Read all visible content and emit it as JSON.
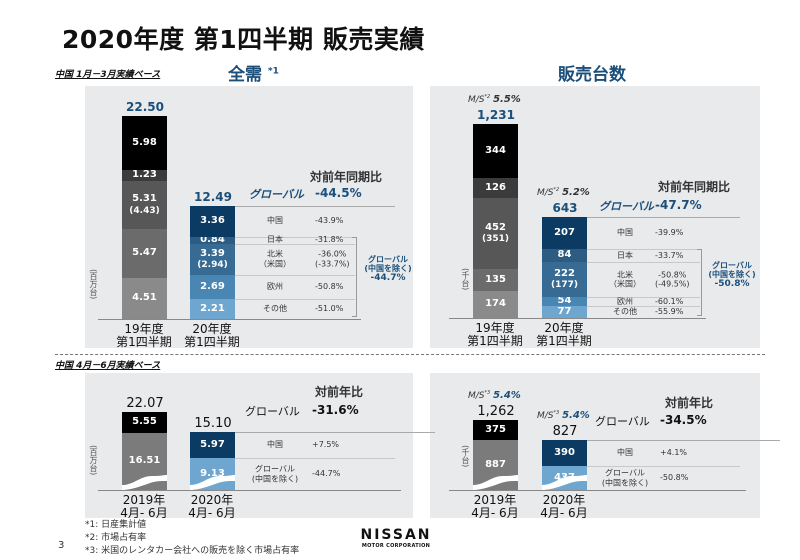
{
  "title": "2020年度 第1四半期 販売実績",
  "page_number": "3",
  "captions": {
    "q1": "中国 1月－3月実績ベース",
    "q2": "中国 4月－6月実績ベース"
  },
  "section_titles": {
    "total_demand": "全需",
    "total_demand_note": "*1",
    "sales_volume": "販売台数"
  },
  "footnotes": [
    "*1: 日産集計値",
    "*2: 市場占有率",
    "*3: 米国のレンタカー会社への販売を除く市場占有率"
  ],
  "logo": {
    "name": "NISSAN",
    "sub": "MOTOR CORPORATION"
  },
  "chart_data": [
    {
      "type": "stacked-bar",
      "title": "全需 *1",
      "unit": "(百万台)",
      "yoy_header": "対前年同期比",
      "global_label": "グローバル",
      "global_yoy": "-44.5%",
      "group": {
        "label": "グローバル",
        "sub": "(中国を除く)",
        "yoy": "-44.7%"
      },
      "bars": [
        {
          "x1": "19年度",
          "x2": "第1四半期",
          "total": "22.50",
          "segments": [
            {
              "value": "5.98",
              "color": "#000000"
            },
            {
              "value": "1.23",
              "color": "#3b3b3b"
            },
            {
              "value": "5.31",
              "sub": "(4.43)",
              "color": "#575757"
            },
            {
              "value": "5.47",
              "color": "#6b6b6b"
            },
            {
              "value": "4.51",
              "color": "#8a8a8a"
            }
          ]
        },
        {
          "x1": "20年度",
          "x2": "第1四半期",
          "total": "12.49",
          "segments": [
            {
              "value": "3.36",
              "color": "#0b3a62",
              "label": "中国",
              "yoy": "-43.9%"
            },
            {
              "value": "0.84",
              "color": "#2c5c82",
              "label": "日本",
              "yoy": "-31.8%"
            },
            {
              "value": "3.39",
              "sub": "(2.94)",
              "color": "#386b93",
              "label": "北米",
              "label_sub": "（米国）",
              "yoy": "-36.0%",
              "yoy_sub": "(-33.7%)"
            },
            {
              "value": "2.69",
              "color": "#4a86b3",
              "label": "欧州",
              "yoy": "-50.8%"
            },
            {
              "value": "2.21",
              "color": "#6ea6cf",
              "label": "その他",
              "yoy": "-51.0%"
            }
          ]
        }
      ]
    },
    {
      "type": "stacked-bar",
      "title": "販売台数",
      "unit": "(千台)",
      "yoy_header": "対前年同期比",
      "global_label": "グローバル",
      "global_yoy": "-47.7%",
      "group": {
        "label": "グローバル",
        "sub": "(中国を除く)",
        "yoy": "-50.8%"
      },
      "bars": [
        {
          "x1": "19年度",
          "x2": "第1四半期",
          "total": "1,231",
          "ms_label": "M/S",
          "ms_note": "*2",
          "ms": "5.5%",
          "segments": [
            {
              "value": "344",
              "color": "#000000"
            },
            {
              "value": "126",
              "color": "#3b3b3b"
            },
            {
              "value": "452",
              "sub": "(351)",
              "color": "#575757"
            },
            {
              "value": "135",
              "color": "#6b6b6b"
            },
            {
              "value": "174",
              "color": "#8a8a8a"
            }
          ]
        },
        {
          "x1": "20年度",
          "x2": "第1四半期",
          "total": "643",
          "ms_label": "M/S",
          "ms_note": "*2",
          "ms": "5.2%",
          "segments": [
            {
              "value": "207",
              "color": "#0b3a62",
              "label": "中国",
              "yoy": "-39.9%"
            },
            {
              "value": "84",
              "color": "#2c5c82",
              "label": "日本",
              "yoy": "-33.7%"
            },
            {
              "value": "222",
              "sub": "(177)",
              "color": "#386b93",
              "label": "北米",
              "label_sub": "（米国）",
              "yoy": "-50.8%",
              "yoy_sub": "(-49.5%)"
            },
            {
              "value": "54",
              "color": "#4a86b3",
              "label": "欧州",
              "yoy": "-60.1%"
            },
            {
              "value": "77",
              "color": "#6ea6cf",
              "label": "その他",
              "yoy": "-55.9%"
            }
          ]
        }
      ]
    },
    {
      "type": "stacked-bar",
      "unit": "(百万台)",
      "yoy_header": "対前年比",
      "global_label": "グローバル",
      "global_yoy": "-31.6%",
      "bars": [
        {
          "x1": "2019年",
          "x2": "4月- 6月",
          "total": "22.07",
          "segments": [
            {
              "value": "5.55",
              "color": "#000000"
            },
            {
              "value": "16.51",
              "color": "#7b7b7b"
            }
          ]
        },
        {
          "x1": "2020年",
          "x2": "4月- 6月",
          "total": "15.10",
          "segments": [
            {
              "value": "5.97",
              "color": "#0b3a62",
              "label": "中国",
              "yoy": "+7.5%"
            },
            {
              "value": "9.13",
              "color": "#6ea6cf",
              "label": "グローバル",
              "label_sub": "(中国を除く)",
              "yoy": "-44.7%"
            }
          ]
        }
      ]
    },
    {
      "type": "stacked-bar",
      "unit": "(千台)",
      "yoy_header": "対前年比",
      "global_label": "グローバル",
      "global_yoy": "-34.5%",
      "bars": [
        {
          "x1": "2019年",
          "x2": "4月- 6月",
          "total": "1,262",
          "ms_label": "M/S",
          "ms_note": "*3",
          "ms": "5.4%",
          "segments": [
            {
              "value": "375",
              "color": "#000000"
            },
            {
              "value": "887",
              "color": "#7b7b7b"
            }
          ]
        },
        {
          "x1": "2020年",
          "x2": "4月- 6月",
          "total": "827",
          "ms_label": "M/S",
          "ms_note": "*3",
          "ms": "5.4%",
          "segments": [
            {
              "value": "390",
              "color": "#0b3a62",
              "label": "中国",
              "yoy": "+4.1%"
            },
            {
              "value": "437",
              "color": "#6ea6cf",
              "label": "グローバル",
              "label_sub": "(中国を除く)",
              "yoy": "-50.8%"
            }
          ]
        }
      ]
    }
  ]
}
